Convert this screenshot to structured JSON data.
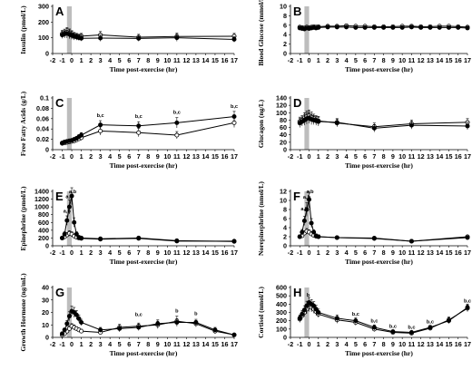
{
  "chart_data": [
    {
      "panel": "A",
      "type": "line",
      "ylabel": "Insulin (pmol/L)",
      "xlabel": "Time post-exercise (hr)",
      "ylim": [
        0,
        300
      ],
      "yticks": [
        0,
        100,
        200,
        300
      ],
      "xlim": [
        -2,
        17
      ],
      "xticks": [
        -2,
        -1,
        0,
        1,
        2,
        3,
        4,
        5,
        6,
        7,
        8,
        9,
        10,
        11,
        12,
        13,
        14,
        15,
        16,
        17
      ],
      "shade": [
        -0.5,
        0
      ],
      "x": [
        -1,
        -0.75,
        -0.5,
        -0.25,
        0,
        0.25,
        0.5,
        0.75,
        1,
        3,
        7,
        11,
        17
      ],
      "series": [
        {
          "style": "filled",
          "values": [
            118,
            124,
            128,
            122,
            115,
            108,
            105,
            100,
            97,
            98,
            96,
            100,
            90
          ],
          "err": [
            22,
            25,
            30,
            28,
            25,
            22,
            20,
            18,
            18,
            20,
            18,
            22,
            18
          ]
        },
        {
          "style": "open",
          "values": [
            125,
            130,
            135,
            128,
            120,
            112,
            108,
            105,
            110,
            118,
            104,
            108,
            110
          ],
          "err": [
            22,
            25,
            30,
            28,
            25,
            22,
            20,
            18,
            18,
            22,
            18,
            22,
            18
          ]
        }
      ],
      "annotations": []
    },
    {
      "panel": "B",
      "type": "line",
      "ylabel": "Blood Glucose (mmol/L)",
      "xlabel": "Time post-exercise (hr)",
      "ylim": [
        0,
        10
      ],
      "yticks": [
        0,
        2,
        4,
        6,
        8,
        10
      ],
      "xlim": [
        -2,
        17
      ],
      "xticks": [
        -2,
        -1,
        0,
        1,
        2,
        3,
        4,
        5,
        6,
        7,
        8,
        9,
        10,
        11,
        12,
        13,
        14,
        15,
        16,
        17
      ],
      "shade": [
        -0.5,
        0
      ],
      "x": [
        -1,
        -0.75,
        -0.5,
        -0.25,
        0,
        0.25,
        0.5,
        0.75,
        1,
        2,
        3,
        4,
        5,
        6,
        7,
        8,
        9,
        10,
        11,
        12,
        13,
        14,
        15,
        16,
        17
      ],
      "series": [
        {
          "style": "filled",
          "values": [
            5.4,
            5.3,
            5.2,
            5.4,
            5.3,
            5.4,
            5.5,
            5.4,
            5.5,
            5.6,
            5.6,
            5.6,
            5.5,
            5.5,
            5.5,
            5.5,
            5.5,
            5.5,
            5.6,
            5.5,
            5.5,
            5.5,
            5.5,
            5.5,
            5.4
          ],
          "err": [
            0.3,
            0.3,
            0.3,
            0.3,
            0.3,
            0.3,
            0.3,
            0.3,
            0.3,
            0.2,
            0.2,
            0.2,
            0.2,
            0.2,
            0.2,
            0.2,
            0.2,
            0.2,
            0.2,
            0.2,
            0.2,
            0.2,
            0.2,
            0.2,
            0.2
          ]
        },
        {
          "style": "open",
          "values": [
            5.6,
            5.5,
            5.4,
            5.6,
            5.5,
            5.6,
            5.7,
            5.6,
            5.7,
            5.8,
            5.8,
            5.9,
            5.8,
            5.8,
            5.7,
            5.7,
            5.7,
            5.8,
            5.8,
            5.7,
            5.7,
            5.8,
            5.8,
            5.7,
            5.6
          ],
          "err": [
            0.3,
            0.3,
            0.3,
            0.3,
            0.3,
            0.3,
            0.3,
            0.3,
            0.3,
            0.2,
            0.2,
            0.2,
            0.2,
            0.2,
            0.2,
            0.2,
            0.2,
            0.2,
            0.2,
            0.2,
            0.2,
            0.2,
            0.2,
            0.2,
            0.2
          ]
        }
      ],
      "annotations": []
    },
    {
      "panel": "C",
      "type": "line",
      "ylabel": "Free Fatty Acids (g/L)",
      "xlabel": "Time post-exercise (hr)",
      "ylim": [
        0,
        0.1
      ],
      "yticks": [
        0,
        0.02,
        0.04,
        0.06,
        0.08,
        0.1
      ],
      "ytick_labels": [
        "0",
        "0.02",
        "0.04",
        "0.06",
        "0.08",
        "0.1"
      ],
      "xlim": [
        -2,
        17
      ],
      "xticks": [
        -2,
        -1,
        0,
        1,
        2,
        3,
        4,
        5,
        6,
        7,
        8,
        9,
        10,
        11,
        12,
        13,
        14,
        15,
        16,
        17
      ],
      "shade": [
        -0.5,
        0
      ],
      "x": [
        -1,
        -0.75,
        -0.5,
        -0.25,
        0,
        0.25,
        0.5,
        0.75,
        1,
        3,
        7,
        11,
        17
      ],
      "series": [
        {
          "style": "filled",
          "values": [
            0.013,
            0.015,
            0.016,
            0.017,
            0.018,
            0.02,
            0.022,
            0.025,
            0.028,
            0.048,
            0.046,
            0.052,
            0.064
          ],
          "err": [
            0.003,
            0.003,
            0.003,
            0.003,
            0.003,
            0.003,
            0.003,
            0.004,
            0.005,
            0.008,
            0.008,
            0.01,
            0.01
          ]
        },
        {
          "style": "open",
          "values": [
            0.012,
            0.013,
            0.014,
            0.015,
            0.016,
            0.017,
            0.019,
            0.021,
            0.023,
            0.036,
            0.033,
            0.028,
            0.052
          ],
          "err": [
            0.003,
            0.003,
            0.003,
            0.003,
            0.003,
            0.003,
            0.003,
            0.004,
            0.005,
            0.008,
            0.008,
            0.007,
            0.009
          ]
        }
      ],
      "annotations": [
        {
          "x": 3,
          "y": 0.063,
          "text": "b,c"
        },
        {
          "x": 7,
          "y": 0.061,
          "text": "b,c"
        },
        {
          "x": 11,
          "y": 0.069,
          "text": "b,c"
        },
        {
          "x": 17,
          "y": 0.081,
          "text": "b,c"
        }
      ]
    },
    {
      "panel": "D",
      "type": "line",
      "ylabel": "Glucagon (ng/L)",
      "xlabel": "Time post-exercise (hr)",
      "ylim": [
        0,
        140
      ],
      "yticks": [
        0,
        20,
        40,
        60,
        80,
        100,
        120,
        140
      ],
      "xlim": [
        -2,
        17
      ],
      "xticks": [
        -2,
        -1,
        0,
        1,
        2,
        3,
        4,
        5,
        6,
        7,
        8,
        9,
        10,
        11,
        12,
        13,
        14,
        15,
        16,
        17
      ],
      "shade": [
        -0.5,
        0
      ],
      "x": [
        -1,
        -0.75,
        -0.5,
        -0.25,
        0,
        0.25,
        0.5,
        0.75,
        1,
        3,
        7,
        11,
        17
      ],
      "series": [
        {
          "style": "filled",
          "values": [
            72,
            76,
            80,
            84,
            86,
            82,
            80,
            78,
            76,
            74,
            58,
            66,
            64
          ],
          "err": [
            12,
            12,
            14,
            15,
            15,
            14,
            12,
            12,
            12,
            10,
            10,
            10,
            10
          ]
        },
        {
          "style": "open",
          "values": [
            76,
            80,
            86,
            90,
            92,
            88,
            84,
            80,
            78,
            72,
            62,
            70,
            74
          ],
          "err": [
            12,
            12,
            14,
            15,
            15,
            14,
            12,
            12,
            12,
            10,
            10,
            10,
            10
          ]
        }
      ],
      "annotations": []
    },
    {
      "panel": "E",
      "type": "line",
      "ylabel": "Epinephrine (pmol/L)",
      "xlabel": "Time post-exercise (hr)",
      "ylim": [
        0,
        1400
      ],
      "yticks": [
        0,
        200,
        400,
        600,
        800,
        1000,
        1200,
        1400
      ],
      "xlim": [
        -2,
        17
      ],
      "xticks": [
        -2,
        -1,
        0,
        1,
        2,
        3,
        4,
        5,
        6,
        7,
        8,
        9,
        10,
        11,
        12,
        13,
        14,
        15,
        16,
        17
      ],
      "shade": [
        -0.5,
        0
      ],
      "x": [
        -1,
        -0.75,
        -0.5,
        -0.25,
        0,
        0.25,
        0.5,
        0.75,
        1,
        3,
        7,
        11,
        17
      ],
      "series": [
        {
          "style": "filled",
          "values": [
            200,
            300,
            650,
            1000,
            1280,
            600,
            300,
            220,
            200,
            180,
            200,
            130,
            110
          ],
          "err": [
            40,
            60,
            120,
            180,
            220,
            120,
            60,
            40,
            40,
            30,
            40,
            20,
            20
          ]
        },
        {
          "style": "open",
          "values": [
            200,
            230,
            280,
            320,
            300,
            250,
            220,
            200,
            190,
            170,
            190,
            120,
            120
          ],
          "err": [
            40,
            50,
            60,
            70,
            60,
            50,
            40,
            40,
            40,
            30,
            40,
            20,
            20
          ]
        }
      ],
      "annotations": [
        {
          "x": -0.5,
          "y": 850,
          "text": "a,b"
        },
        {
          "x": -0.25,
          "y": 1230,
          "text": "a,b"
        },
        {
          "x": 0.1,
          "y": 1540,
          "text": "a,b"
        }
      ]
    },
    {
      "panel": "F",
      "type": "line",
      "ylabel": "Norepinephrine (nmol/L)",
      "xlabel": "Time post-exercise (hr)",
      "ylim": [
        0,
        12
      ],
      "yticks": [
        0,
        2,
        4,
        6,
        8,
        10,
        12
      ],
      "xlim": [
        -2,
        17
      ],
      "xticks": [
        -2,
        -1,
        0,
        1,
        2,
        3,
        4,
        5,
        6,
        7,
        8,
        9,
        10,
        11,
        12,
        13,
        14,
        15,
        16,
        17
      ],
      "shade": [
        -0.5,
        0
      ],
      "x": [
        -1,
        -0.75,
        -0.5,
        -0.25,
        0,
        0.25,
        0.5,
        0.75,
        1,
        3,
        7,
        11,
        17
      ],
      "series": [
        {
          "style": "filled",
          "values": [
            2,
            3,
            5.5,
            8,
            10.2,
            5,
            3,
            2.2,
            2,
            1.8,
            1.6,
            1.0,
            1.8
          ],
          "err": [
            0.4,
            0.6,
            1,
            1.5,
            1.8,
            1,
            0.5,
            0.4,
            0.4,
            0.3,
            0.3,
            0.2,
            0.3
          ]
        },
        {
          "style": "open",
          "values": [
            2,
            2.2,
            2.8,
            3.2,
            3.0,
            2.6,
            2.3,
            2.1,
            2,
            1.8,
            1.7,
            1.0,
            2.0
          ],
          "err": [
            0.4,
            0.4,
            0.5,
            0.6,
            0.5,
            0.5,
            0.4,
            0.4,
            0.4,
            0.3,
            0.3,
            0.2,
            0.3
          ]
        }
      ],
      "annotations": [
        {
          "x": -0.5,
          "y": 7.8,
          "text": "a,b"
        },
        {
          "x": -0.25,
          "y": 10.4,
          "text": "a,b"
        },
        {
          "x": 0.1,
          "y": 12.3,
          "text": "a,b"
        }
      ]
    },
    {
      "panel": "G",
      "type": "line",
      "ylabel": "Growth Hormone (ng/mL)",
      "xlabel": "Time post-exercise (hr)",
      "ylim": [
        0,
        40
      ],
      "yticks": [
        0,
        10,
        20,
        30,
        40
      ],
      "xlim": [
        -2,
        17
      ],
      "xticks": [
        -2,
        -1,
        0,
        1,
        2,
        3,
        4,
        5,
        6,
        7,
        8,
        9,
        10,
        11,
        12,
        13,
        14,
        15,
        16,
        17
      ],
      "shade": [
        -0.5,
        0
      ],
      "x": [
        -1,
        -0.75,
        -0.5,
        -0.25,
        0,
        0.25,
        0.5,
        0.75,
        1,
        3,
        5,
        7,
        9,
        11,
        13,
        15,
        17
      ],
      "series": [
        {
          "style": "filled",
          "values": [
            3,
            6,
            11,
            17,
            21,
            20,
            18,
            15,
            12,
            6,
            7,
            8,
            11,
            12,
            12,
            6,
            2
          ],
          "err": [
            1,
            1.5,
            2.5,
            3.5,
            4,
            4,
            3.5,
            3,
            2.5,
            2,
            2.5,
            2.5,
            3,
            3,
            2.5,
            2,
            1
          ]
        },
        {
          "style": "open",
          "values": [
            2,
            3,
            5,
            7,
            9,
            8,
            7,
            6,
            5,
            4,
            8,
            9,
            10,
            13,
            11,
            5,
            2
          ],
          "err": [
            1,
            1,
            1.5,
            2,
            2,
            2,
            1.5,
            1.5,
            1.5,
            1.5,
            2.5,
            2.5,
            3,
            4,
            2.5,
            2,
            1
          ]
        }
      ],
      "annotations": [
        {
          "x": 7,
          "y": 17,
          "text": "b,c"
        },
        {
          "x": 11,
          "y": 20,
          "text": "b"
        },
        {
          "x": 13,
          "y": 18,
          "text": "b"
        }
      ]
    },
    {
      "panel": "H",
      "type": "line",
      "ylabel": "Cortisol (nmol/L)",
      "xlabel": "Time post-exercise (hr)",
      "ylim": [
        0,
        600
      ],
      "yticks": [
        0,
        100,
        200,
        300,
        400,
        500,
        600
      ],
      "xlim": [
        -2,
        17
      ],
      "xticks": [
        -2,
        -1,
        0,
        1,
        2,
        3,
        4,
        5,
        6,
        7,
        8,
        9,
        10,
        11,
        12,
        13,
        14,
        15,
        16,
        17
      ],
      "shade": [
        -0.5,
        0
      ],
      "x": [
        -1,
        -0.75,
        -0.5,
        -0.25,
        0,
        0.25,
        0.5,
        0.75,
        1,
        3,
        5,
        7,
        9,
        11,
        13,
        15,
        17
      ],
      "series": [
        {
          "style": "filled",
          "values": [
            230,
            280,
            330,
            380,
            420,
            400,
            380,
            340,
            300,
            230,
            200,
            120,
            70,
            60,
            120,
            200,
            360
          ],
          "err": [
            40,
            45,
            50,
            55,
            60,
            55,
            50,
            45,
            40,
            40,
            35,
            30,
            20,
            20,
            25,
            35,
            40
          ]
        },
        {
          "style": "open",
          "values": [
            220,
            260,
            300,
            340,
            370,
            360,
            340,
            310,
            280,
            210,
            180,
            100,
            60,
            50,
            110,
            210,
            350
          ],
          "err": [
            40,
            45,
            50,
            55,
            60,
            55,
            50,
            45,
            40,
            40,
            35,
            30,
            20,
            20,
            25,
            35,
            40
          ]
        }
      ],
      "annotations": [
        {
          "x": -0.1,
          "y": 490,
          "text": "b"
        },
        {
          "x": 5,
          "y": 260,
          "text": "b,c"
        },
        {
          "x": 7,
          "y": 180,
          "text": "b,c"
        },
        {
          "x": 9,
          "y": 115,
          "text": "b,c"
        },
        {
          "x": 11,
          "y": 105,
          "text": "b,c"
        },
        {
          "x": 13,
          "y": 170,
          "text": "b,c"
        },
        {
          "x": 17,
          "y": 420,
          "text": "b,c"
        }
      ]
    }
  ]
}
